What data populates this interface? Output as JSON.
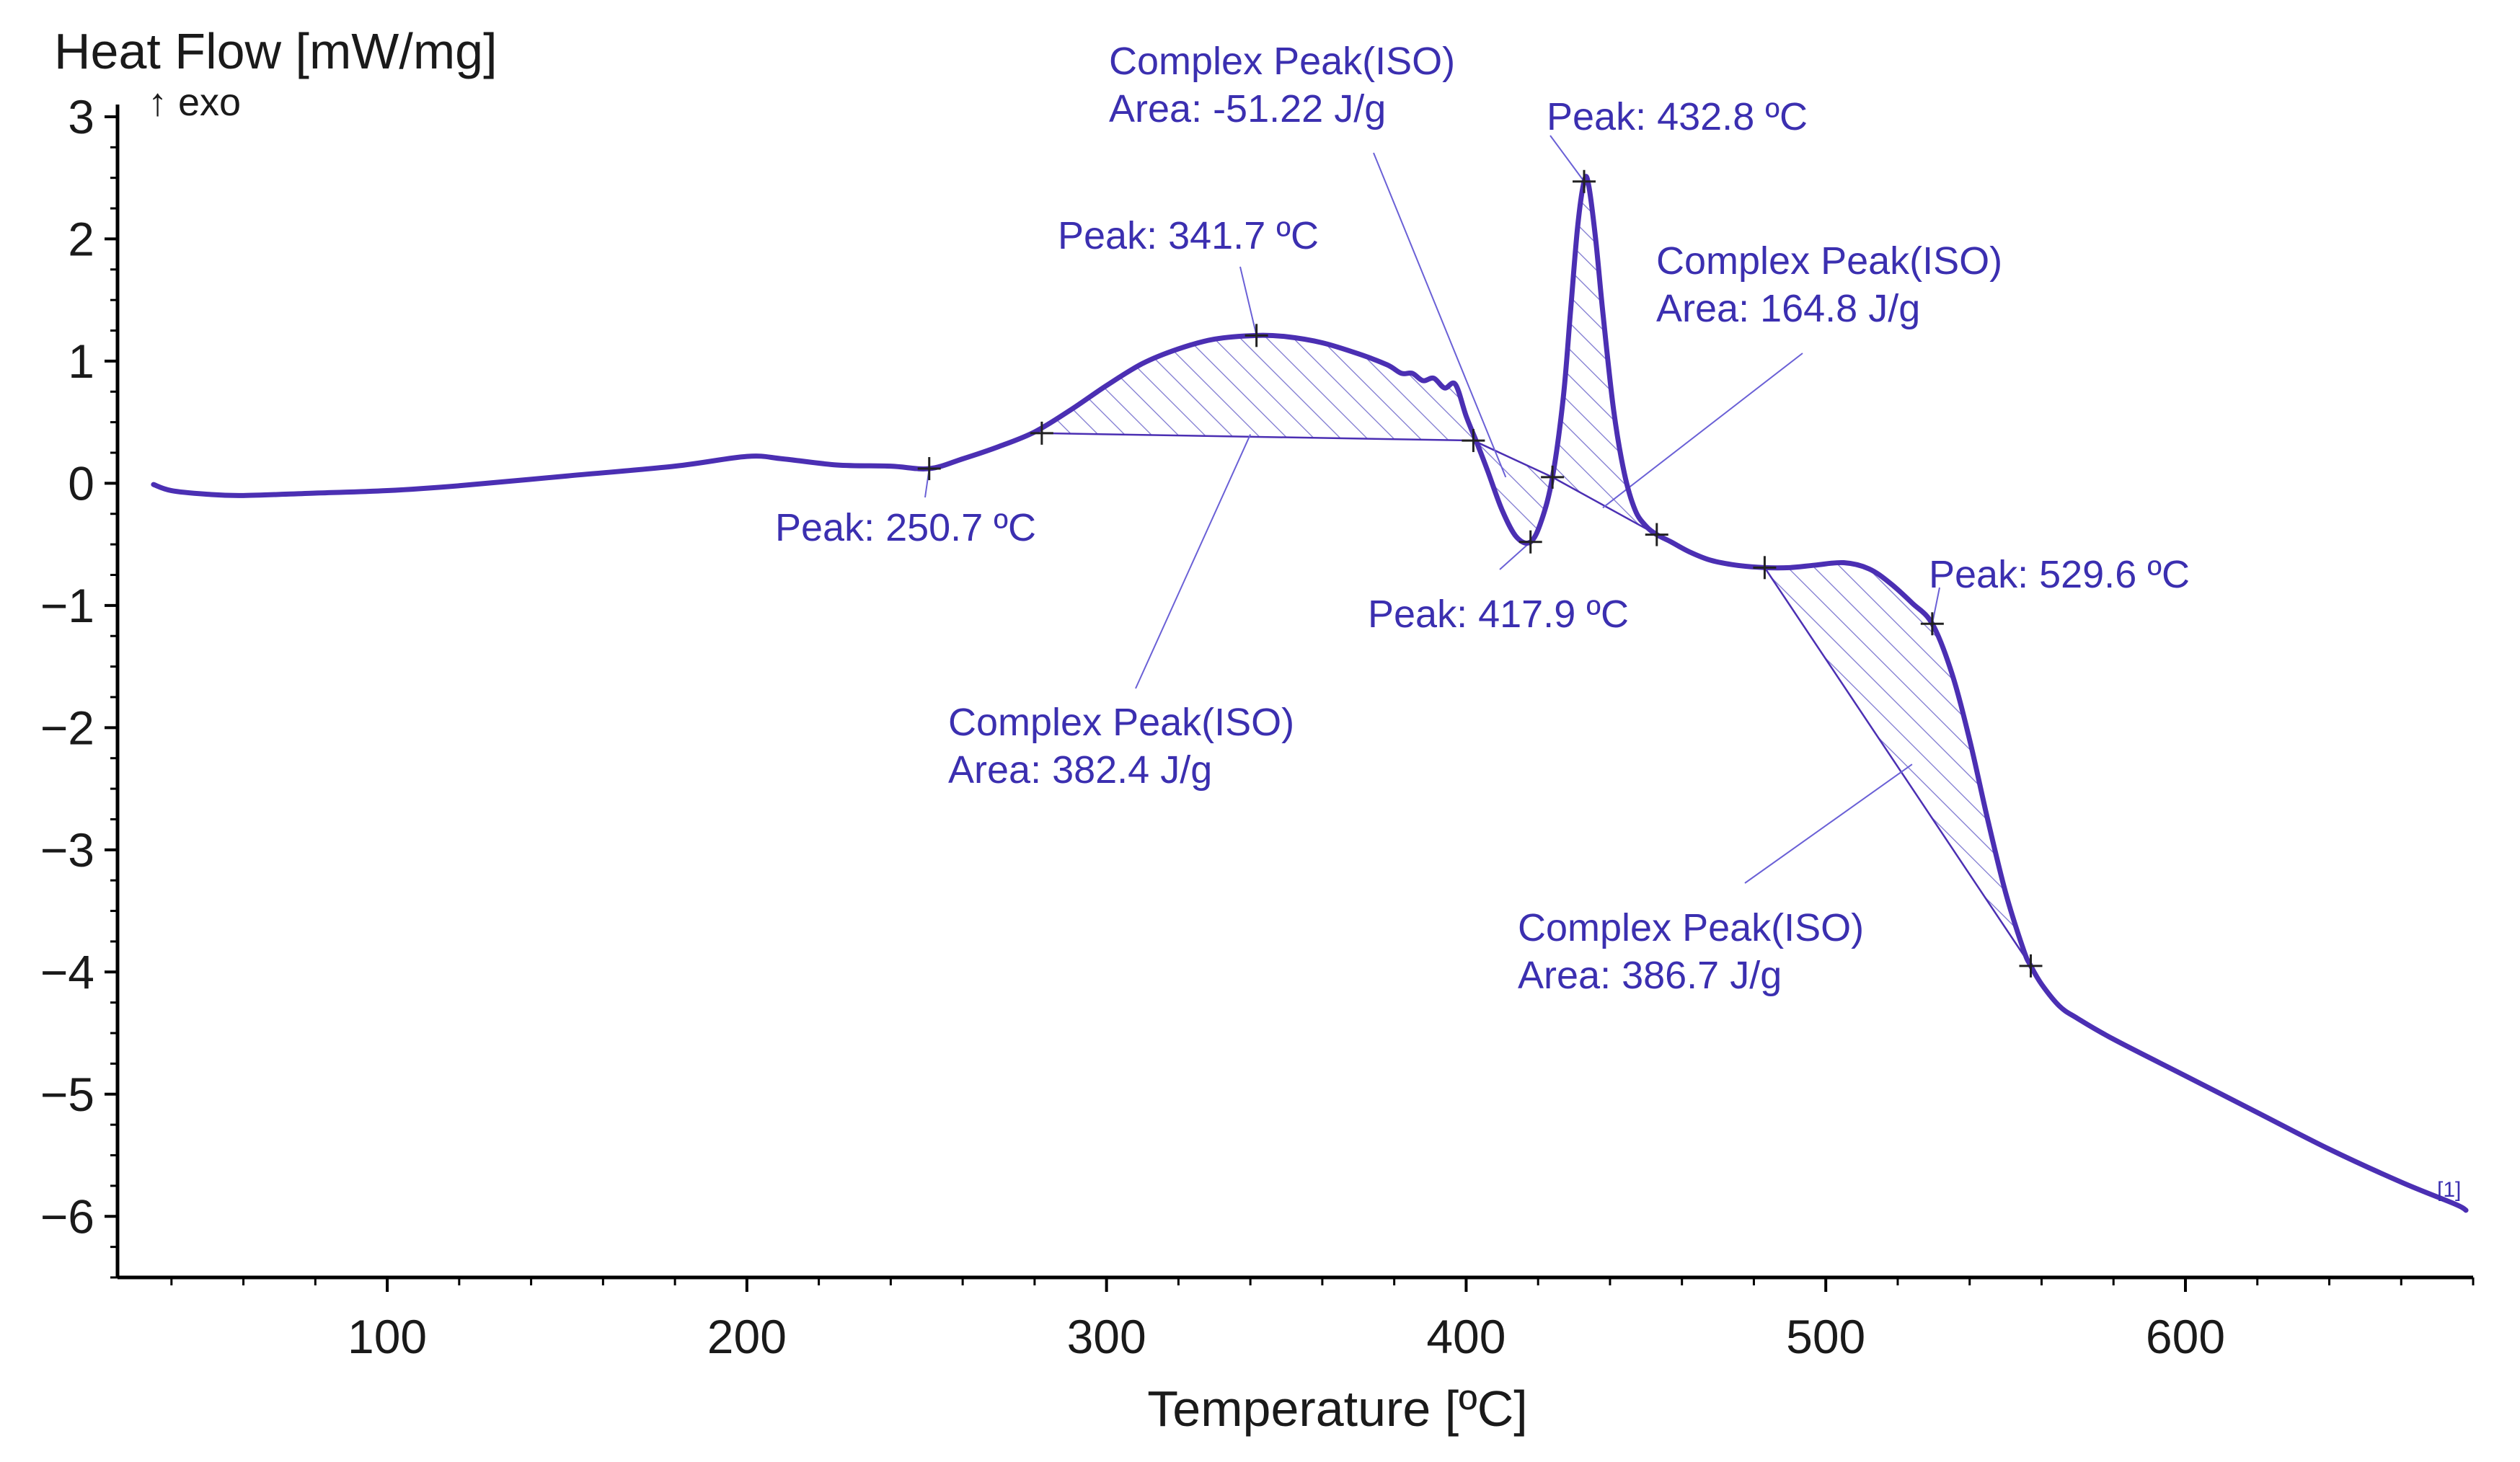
{
  "colors": {
    "curve": "#4b2fb3",
    "annotation": "#3b2fb0",
    "leader": "#6a60d6",
    "hatch": "#7a74cf",
    "axis": "#000000"
  },
  "chart_data": {
    "type": "line",
    "title": "",
    "xlabel": "Temperature [ºC]",
    "ylabel": "Heat Flow [mW/mg]",
    "y_note": "↑ exo",
    "xlim": [
      25,
      680
    ],
    "ylim": [
      -6.5,
      3.1
    ],
    "x_ticks": [
      100,
      200,
      300,
      400,
      500,
      600
    ],
    "y_ticks": [
      3,
      2,
      1,
      0,
      -1,
      -2,
      -3,
      -4,
      -5,
      -6
    ],
    "x_tick_labels": [
      "100",
      "200",
      "300",
      "400",
      "500",
      "600"
    ],
    "y_tick_labels": [
      "3",
      "2",
      "1",
      "0",
      "−1",
      "−2",
      "−3",
      "−4",
      "−5",
      "−6"
    ],
    "grid": false,
    "series": [
      {
        "name": "[1]",
        "x": [
          35,
          40,
          50,
          60,
          80,
          100,
          120,
          150,
          180,
          200,
          210,
          225,
          240,
          250.7,
          260,
          270,
          280,
          290,
          300,
          310,
          320,
          330,
          341.7,
          350,
          360,
          370,
          378,
          382,
          385,
          388,
          391,
          394,
          397,
          400,
          403,
          406,
          410,
          414,
          417.9,
          421,
          424,
          427,
          429,
          431,
          432.8,
          434,
          436,
          438,
          441,
          444,
          447,
          450,
          453,
          457,
          462,
          468,
          475,
          483,
          490,
          497,
          505,
          512,
          518,
          524,
          529.6,
          535,
          540,
          545,
          550,
          555,
          557,
          560,
          565,
          570,
          580,
          600,
          620,
          640,
          660,
          675,
          678
        ],
        "y": [
          -0.01,
          -0.06,
          -0.09,
          -0.1,
          -0.08,
          -0.06,
          -0.02,
          0.06,
          0.14,
          0.22,
          0.2,
          0.15,
          0.14,
          0.12,
          0.2,
          0.3,
          0.42,
          0.6,
          0.8,
          0.98,
          1.1,
          1.18,
          1.21,
          1.2,
          1.15,
          1.06,
          0.97,
          0.9,
          0.9,
          0.84,
          0.86,
          0.78,
          0.81,
          0.55,
          0.33,
          0.1,
          -0.22,
          -0.44,
          -0.48,
          -0.3,
          0.05,
          0.7,
          1.4,
          2.1,
          2.47,
          2.45,
          2.0,
          1.4,
          0.6,
          0.08,
          -0.22,
          -0.35,
          -0.42,
          -0.48,
          -0.56,
          -0.63,
          -0.67,
          -0.69,
          -0.69,
          -0.67,
          -0.65,
          -0.7,
          -0.82,
          -0.98,
          -1.15,
          -1.55,
          -2.1,
          -2.75,
          -3.35,
          -3.82,
          -3.95,
          -4.1,
          -4.28,
          -4.38,
          -4.55,
          -4.85,
          -5.15,
          -5.45,
          -5.72,
          -5.9,
          -5.95
        ]
      }
    ],
    "integration_baselines": [
      {
        "x": [
          282,
          402
        ],
        "y": [
          0.41,
          0.35
        ]
      },
      {
        "x": [
          402,
          424
        ],
        "y": [
          0.35,
          0.05
        ]
      },
      {
        "x": [
          424,
          453
        ],
        "y": [
          0.05,
          -0.42
        ]
      },
      {
        "x": [
          483,
          557
        ],
        "y": [
          -0.69,
          -3.95
        ]
      }
    ],
    "annotations": [
      {
        "lines": [
          "Peak: 250.7 ºC"
        ],
        "point": [
          250.7,
          0.12
        ]
      },
      {
        "lines": [
          "Peak: 341.7 ºC"
        ],
        "point": [
          341.7,
          1.21
        ]
      },
      {
        "lines": [
          "Complex Peak(ISO)",
          "Area: 382.4 J/g"
        ],
        "point": [
          340,
          0.4
        ]
      },
      {
        "lines": [
          "Complex Peak(ISO)",
          "Area: -51.22 J/g"
        ],
        "point": [
          411,
          0.05
        ]
      },
      {
        "lines": [
          "Peak: 432.8 ºC"
        ],
        "point": [
          432.8,
          2.47
        ]
      },
      {
        "lines": [
          "Complex Peak(ISO)",
          "Area: 164.8 J/g"
        ],
        "point": [
          438,
          -0.2
        ]
      },
      {
        "lines": [
          "Peak: 417.9 ºC"
        ],
        "point": [
          417.9,
          -0.48
        ]
      },
      {
        "lines": [
          "Peak: 529.6 ºC"
        ],
        "point": [
          529.6,
          -1.15
        ]
      },
      {
        "lines": [
          "Complex Peak(ISO)",
          "Area: 386.7 J/g"
        ],
        "point": [
          524,
          -2.3
        ]
      }
    ],
    "markers": [
      {
        "x": 250.7,
        "y": 0.12
      },
      {
        "x": 282,
        "y": 0.41
      },
      {
        "x": 341.7,
        "y": 1.21
      },
      {
        "x": 402,
        "y": 0.35
      },
      {
        "x": 417.9,
        "y": -0.48
      },
      {
        "x": 424,
        "y": 0.05
      },
      {
        "x": 432.8,
        "y": 2.47
      },
      {
        "x": 453,
        "y": -0.42
      },
      {
        "x": 483,
        "y": -0.69
      },
      {
        "x": 529.6,
        "y": -1.15
      },
      {
        "x": 557,
        "y": -3.95
      }
    ],
    "sample_tag": "[1]"
  }
}
